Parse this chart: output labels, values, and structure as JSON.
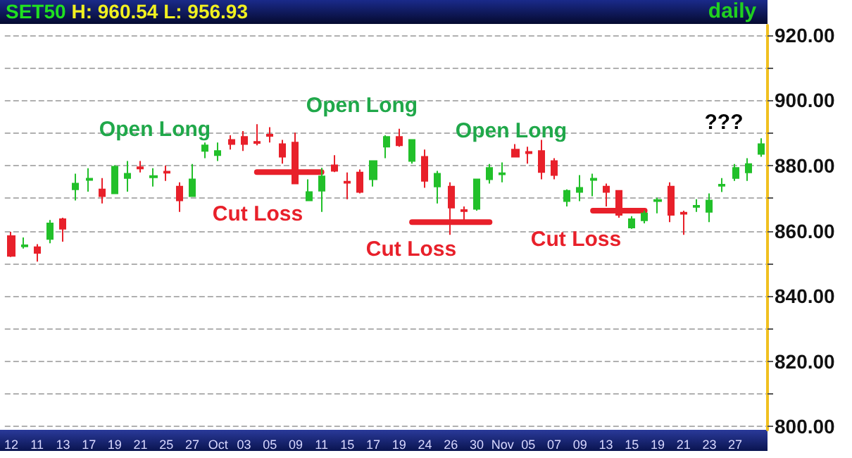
{
  "chart_data": {
    "type": "candlestick",
    "title": "SET50",
    "subtitle": "H: 960.54 L: 956.93",
    "annotations": [
      "Open Long",
      "Open Long",
      "Open Long",
      "Cut Loss",
      "Cut Loss",
      "Cut Loss",
      "???",
      "daily"
    ],
    "categories": [
      "12",
      null,
      "11",
      null,
      "13",
      null,
      "17",
      null,
      "19",
      null,
      "21",
      null,
      "25",
      null,
      "27",
      null,
      "Oct",
      null,
      "03",
      null,
      "05",
      null,
      "09",
      null,
      "11",
      null,
      "15",
      null,
      "17",
      null,
      "19",
      null,
      "24",
      null,
      "26",
      null,
      "30",
      null,
      "Nov",
      null,
      "05",
      null,
      "07",
      null,
      "09",
      null,
      "13",
      null,
      "15",
      null,
      "19",
      null,
      "21",
      null,
      "23",
      null,
      "27",
      null,
      null
    ],
    "ohlc": [
      [
        858.4,
        859.7,
        852,
        852.3
      ],
      [
        855.2,
        858,
        854.6,
        855.6
      ],
      [
        855,
        855.9,
        850.6,
        853.2
      ],
      [
        857.5,
        863.3,
        856.2,
        862.3
      ],
      [
        863.6,
        864,
        856.7,
        860.6
      ],
      [
        872.7,
        877.5,
        869.3,
        874.5
      ],
      [
        875.6,
        879.2,
        872,
        876
      ],
      [
        872.7,
        876.2,
        868.4,
        870.6
      ],
      [
        871.5,
        880.1,
        871.5,
        879.7
      ],
      [
        876.2,
        881.4,
        872,
        877.5
      ],
      [
        879.5,
        881.4,
        877.9,
        879.1
      ],
      [
        876.4,
        879.2,
        873.6,
        876.8
      ],
      [
        878.2,
        880,
        875.3,
        877.8
      ],
      [
        873.6,
        874.9,
        865.8,
        869.3
      ],
      [
        870.6,
        880.5,
        870.6,
        875.8
      ],
      [
        884.5,
        887.1,
        882.3,
        886.2
      ],
      [
        883.2,
        887.1,
        881.4,
        884.5
      ],
      [
        887.9,
        889.3,
        884.9,
        886.6
      ],
      [
        888.8,
        890.6,
        884.5,
        886.6
      ],
      [
        887.3,
        892.7,
        886.2,
        886.9
      ],
      [
        889.5,
        891.8,
        887.1,
        889.1
      ],
      [
        886.6,
        887.9,
        880.6,
        882.7
      ],
      [
        887.1,
        890.1,
        874.5,
        874.5
      ],
      [
        869.3,
        875.8,
        869.3,
        871.9
      ],
      [
        872.3,
        879.3,
        865.8,
        876.7
      ],
      [
        880.1,
        883.2,
        878,
        878.4
      ],
      [
        875.1,
        877.9,
        869.7,
        874.7
      ],
      [
        877.9,
        878.8,
        871.5,
        871.9
      ],
      [
        875.8,
        881.4,
        873.6,
        881.4
      ],
      [
        885.8,
        889.3,
        882.3,
        888.8
      ],
      [
        888.8,
        891.3,
        885.8,
        886.2
      ],
      [
        881.4,
        887.9,
        880.6,
        887.9
      ],
      [
        882.7,
        884.9,
        873.2,
        875.3
      ],
      [
        873.6,
        878.4,
        868.4,
        877.5
      ],
      [
        873.6,
        874.9,
        858.8,
        867.1
      ],
      [
        866.4,
        867.5,
        863.2,
        866
      ],
      [
        866.7,
        875.8,
        866.2,
        875.8
      ],
      [
        875.8,
        880.5,
        874.5,
        879.3
      ],
      [
        877.3,
        881,
        874.9,
        877.7
      ],
      [
        884.9,
        886.6,
        882.7,
        882.7
      ],
      [
        884.2,
        885.8,
        880.6,
        883.8
      ],
      [
        884.5,
        887.9,
        875.8,
        878
      ],
      [
        881.4,
        882.3,
        875.8,
        877.1
      ],
      [
        869.1,
        872.7,
        867.5,
        872.3
      ],
      [
        871.9,
        877.1,
        869.1,
        873.2
      ],
      [
        875.6,
        877.5,
        870.6,
        876
      ],
      [
        873.6,
        874.5,
        867.5,
        871.9
      ],
      [
        872.3,
        872.3,
        864,
        864.9
      ],
      [
        861,
        864.5,
        860.6,
        863.6
      ],
      [
        863.2,
        866.2,
        862.3,
        865.4
      ],
      [
        869.1,
        870.2,
        865.4,
        869.5
      ],
      [
        873.6,
        874.9,
        862.7,
        864.9
      ],
      [
        865.6,
        866.2,
        858.8,
        865.2
      ],
      [
        867.3,
        869.7,
        865.8,
        867.7
      ],
      [
        865.8,
        871.5,
        862.7,
        869.3
      ],
      [
        873.8,
        876.2,
        871.9,
        874.2
      ],
      [
        876.2,
        880.5,
        875.3,
        879.3
      ],
      [
        877.9,
        882.3,
        875.3,
        880.5
      ],
      [
        883.6,
        888.4,
        882.7,
        886.6
      ]
    ],
    "colors": [
      "#e8202a",
      "#22c02a",
      "#e8202a",
      "#22c02a",
      "#e8202a",
      "#22c02a",
      "#22c02a",
      "#e8202a",
      "#22c02a",
      "#22c02a",
      "#e8202a",
      "#22c02a",
      "#e8202a",
      "#e8202a",
      "#22c02a",
      "#22c02a",
      "#22c02a",
      "#e8202a",
      "#e8202a",
      "#e8202a",
      "#e8202a",
      "#e8202a",
      "#e8202a",
      "#22c02a",
      "#22c02a",
      "#e8202a",
      "#e8202a",
      "#e8202a",
      "#22c02a",
      "#22c02a",
      "#e8202a",
      "#22c02a",
      "#e8202a",
      "#22c02a",
      "#e8202a",
      "#e8202a",
      "#22c02a",
      "#22c02a",
      "#22c02a",
      "#e8202a",
      "#e8202a",
      "#e8202a",
      "#e8202a",
      "#22c02a",
      "#22c02a",
      "#22c02a",
      "#e8202a",
      "#e8202a",
      "#22c02a",
      "#22c02a",
      "#22c02a",
      "#e8202a",
      "#e8202a",
      "#22c02a",
      "#22c02a",
      "#22c02a",
      "#22c02a",
      "#22c02a",
      "#22c02a"
    ],
    "series": [
      {
        "type": "line",
        "color": "#e8202a",
        "values": [
          null,
          null,
          null,
          null,
          null,
          null,
          null,
          null,
          null,
          null,
          null,
          null,
          null,
          null,
          null,
          null,
          null,
          null,
          null,
          878,
          878,
          878,
          878,
          878,
          878,
          null,
          null,
          null,
          null,
          null,
          null,
          null,
          null,
          null,
          null,
          null,
          null,
          null,
          null,
          null,
          null,
          null,
          null,
          null,
          null,
          null,
          null,
          null,
          null,
          null,
          null,
          null,
          null,
          null,
          null,
          null,
          null,
          null,
          null
        ]
      },
      {
        "type": "line",
        "color": "#e8202a",
        "values": [
          null,
          null,
          null,
          null,
          null,
          null,
          null,
          null,
          null,
          null,
          null,
          null,
          null,
          null,
          null,
          null,
          null,
          null,
          null,
          null,
          null,
          null,
          null,
          null,
          null,
          null,
          null,
          null,
          null,
          null,
          null,
          862.7,
          862.7,
          862.7,
          862.7,
          862.7,
          862.7,
          862.7,
          null,
          null,
          null,
          null,
          null,
          null,
          null,
          null,
          null,
          null,
          null,
          null,
          null,
          null,
          null,
          null,
          null,
          null,
          null,
          null,
          null
        ]
      },
      {
        "type": "line",
        "color": "#e8202a",
        "values": [
          null,
          null,
          null,
          null,
          null,
          null,
          null,
          null,
          null,
          null,
          null,
          null,
          null,
          null,
          null,
          null,
          null,
          null,
          null,
          null,
          null,
          null,
          null,
          null,
          null,
          null,
          null,
          null,
          null,
          null,
          null,
          null,
          null,
          null,
          null,
          null,
          null,
          null,
          null,
          null,
          null,
          null,
          null,
          null,
          null,
          866.2,
          866.2,
          866.2,
          866.2,
          866.2,
          null,
          null,
          null,
          null,
          null,
          null,
          null,
          null,
          null
        ]
      }
    ],
    "ylim": [
      799,
      923
    ],
    "yticks": [
      {
        "value": 800,
        "label": "800.00"
      },
      {
        "value": 810,
        "label": null
      },
      {
        "value": 820,
        "label": "820.00"
      },
      {
        "value": 830,
        "label": null
      },
      {
        "value": 840,
        "label": "840.00"
      },
      {
        "value": 850,
        "label": null
      },
      {
        "value": 860,
        "label": "860.00"
      },
      {
        "value": 870,
        "label": null
      },
      {
        "value": 880,
        "label": "880.00"
      },
      {
        "value": 890,
        "label": null
      },
      {
        "value": 900,
        "label": "900.00"
      },
      {
        "value": 910,
        "label": null
      },
      {
        "value": 920,
        "label": "920.00"
      }
    ],
    "grid": "y"
  }
}
